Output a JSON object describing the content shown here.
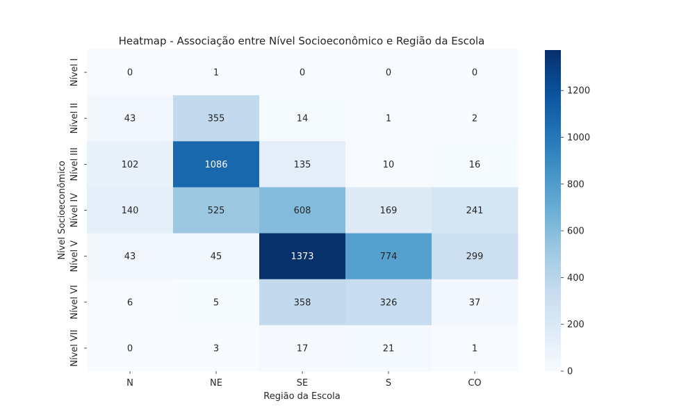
{
  "chart_data": {
    "type": "heatmap",
    "title": "Heatmap - Associação entre Nível Socioeconômico e Região da Escola",
    "xlabel": "Região da Escola",
    "ylabel": "Nível Socioeconômico",
    "x_categories": [
      "N",
      "NE",
      "SE",
      "S",
      "CO"
    ],
    "y_categories": [
      "Nível I",
      "Nível II",
      "Nível III",
      "Nível IV",
      "Nível V",
      "Nível VI",
      "Nível VII"
    ],
    "values": [
      [
        0,
        1,
        0,
        0,
        0
      ],
      [
        43,
        355,
        14,
        1,
        2
      ],
      [
        102,
        1086,
        135,
        10,
        16
      ],
      [
        140,
        525,
        608,
        169,
        241
      ],
      [
        43,
        45,
        1373,
        774,
        299
      ],
      [
        6,
        5,
        358,
        326,
        37
      ],
      [
        0,
        3,
        17,
        21,
        1
      ]
    ],
    "colormap": "Blues",
    "value_range": [
      0,
      1373
    ],
    "colorbar_ticks": [
      0,
      200,
      400,
      600,
      800,
      1000,
      1200
    ],
    "colorbar_tick_labels": [
      "0",
      "200",
      "400",
      "600",
      "800",
      "1000",
      "1200"
    ],
    "annotations": true,
    "grid": false,
    "legend_placement": "right (colorbar)"
  }
}
